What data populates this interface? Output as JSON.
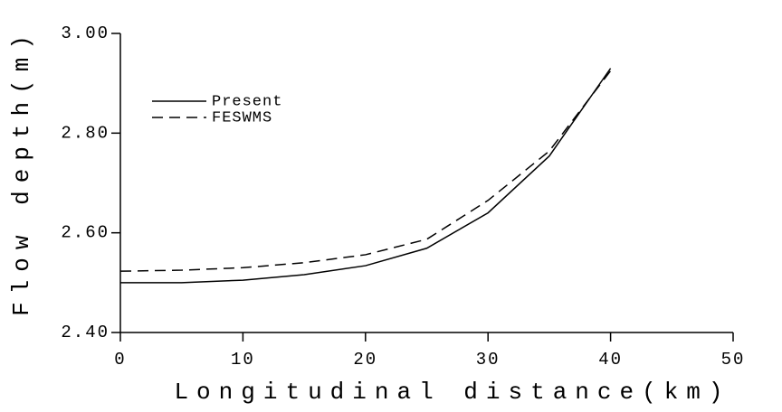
{
  "chart_data": {
    "type": "line",
    "xlabel": "Longitudinal distance(km)",
    "ylabel": "Flow depth(m)",
    "x": [
      0,
      5,
      10,
      15,
      20,
      25,
      30,
      35,
      40
    ],
    "series": [
      {
        "name": "Present",
        "color": "#000000",
        "dash": "solid",
        "values": [
          2.5,
          2.5,
          2.505,
          2.516,
          2.534,
          2.569,
          2.64,
          2.754,
          2.93
        ]
      },
      {
        "name": "FESWMS",
        "color": "#000000",
        "dash": "dashed",
        "values": [
          2.523,
          2.525,
          2.53,
          2.54,
          2.556,
          2.587,
          2.665,
          2.764,
          2.925
        ]
      }
    ],
    "xlim": [
      0,
      50
    ],
    "xticks": [
      0,
      10,
      20,
      30,
      40,
      50
    ],
    "ylim": [
      2.4,
      3.0
    ],
    "yticks": [
      {
        "value": 2.4,
        "label": "2.40"
      },
      {
        "value": 2.6,
        "label": "2.60"
      },
      {
        "value": 2.8,
        "label": "2.80"
      },
      {
        "value": 3.0,
        "label": "3.00"
      }
    ],
    "legend": "upper-left",
    "grid": false
  }
}
